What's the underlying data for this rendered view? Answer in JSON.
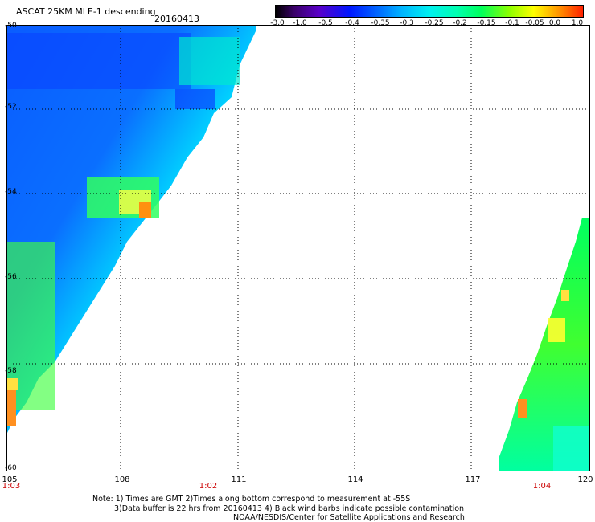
{
  "title": "ASCAT 25KM MLE-1 descending",
  "date": "20160413",
  "colorbar": {
    "labels": [
      "-3.0",
      "-1.0",
      "-0.5",
      "-0.4",
      "-0.35",
      "-0.3",
      "-0.25",
      "-0.2",
      "-0.15",
      "-0.1",
      "-0.05",
      "0.0",
      "1.0"
    ]
  },
  "map": {
    "lat_labels": [
      "-50",
      "-52",
      "-54",
      "-56",
      "-58",
      "-60"
    ],
    "lon_labels": [
      "105",
      "108",
      "111",
      "114",
      "117",
      "120"
    ],
    "time_labels": [
      "1:03",
      "1:02",
      "1:04"
    ],
    "grid": "dotted"
  },
  "notes": [
    "Note: 1) Times are GMT 2)Times along bottom correspond to measurement at -55S",
    "3)Data buffer is 22 hrs from 20160413 4) Black wind barbs indicate possible contamination",
    "NOAA/NESDIS/Center for Satellite Applications and Research"
  ]
}
